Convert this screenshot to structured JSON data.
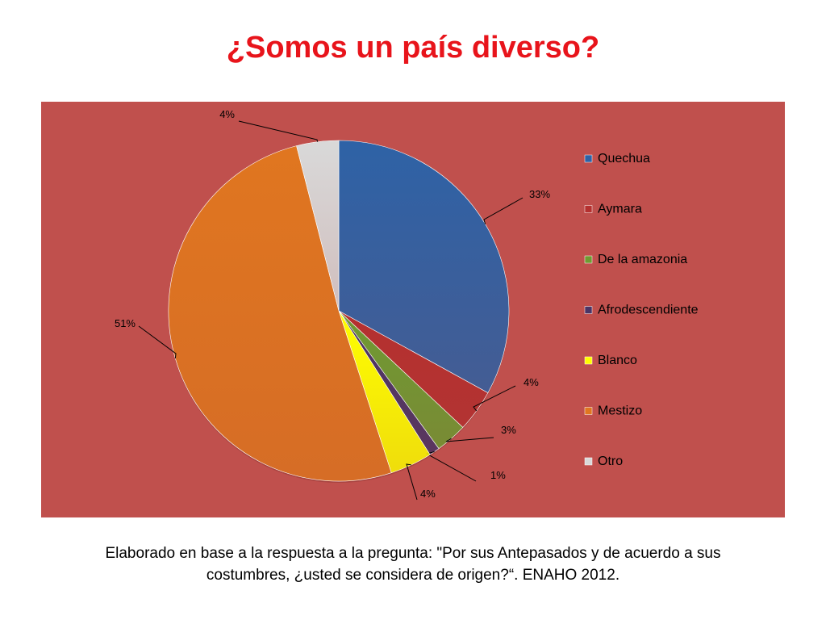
{
  "slide": {
    "title": "¿Somos un país diverso?",
    "caption": "Elaborado en base a la respuesta a la pregunta: \"Por sus Antepasados y de acuerdo a sus costumbres, ¿usted se considera de origen?“. ENAHO 2012."
  },
  "chart_data": {
    "type": "pie",
    "title": "",
    "legend_position": "right",
    "background": "#c0504d",
    "categories": [
      "Quechua",
      "Aymara",
      "De la amazonia",
      "Afrodescendiente",
      "Blanco",
      "Mestizo",
      "Otro"
    ],
    "values": [
      33,
      4,
      3,
      1,
      4,
      51,
      4
    ],
    "labels": [
      "33%",
      "4%",
      "3%",
      "1%",
      "4%",
      "51%",
      "4%"
    ],
    "colors": [
      "#2e62a6",
      "#b5302f",
      "#6f9a32",
      "#4a3465",
      "#ffff00",
      "#e07620",
      "#d9d9d9"
    ]
  }
}
